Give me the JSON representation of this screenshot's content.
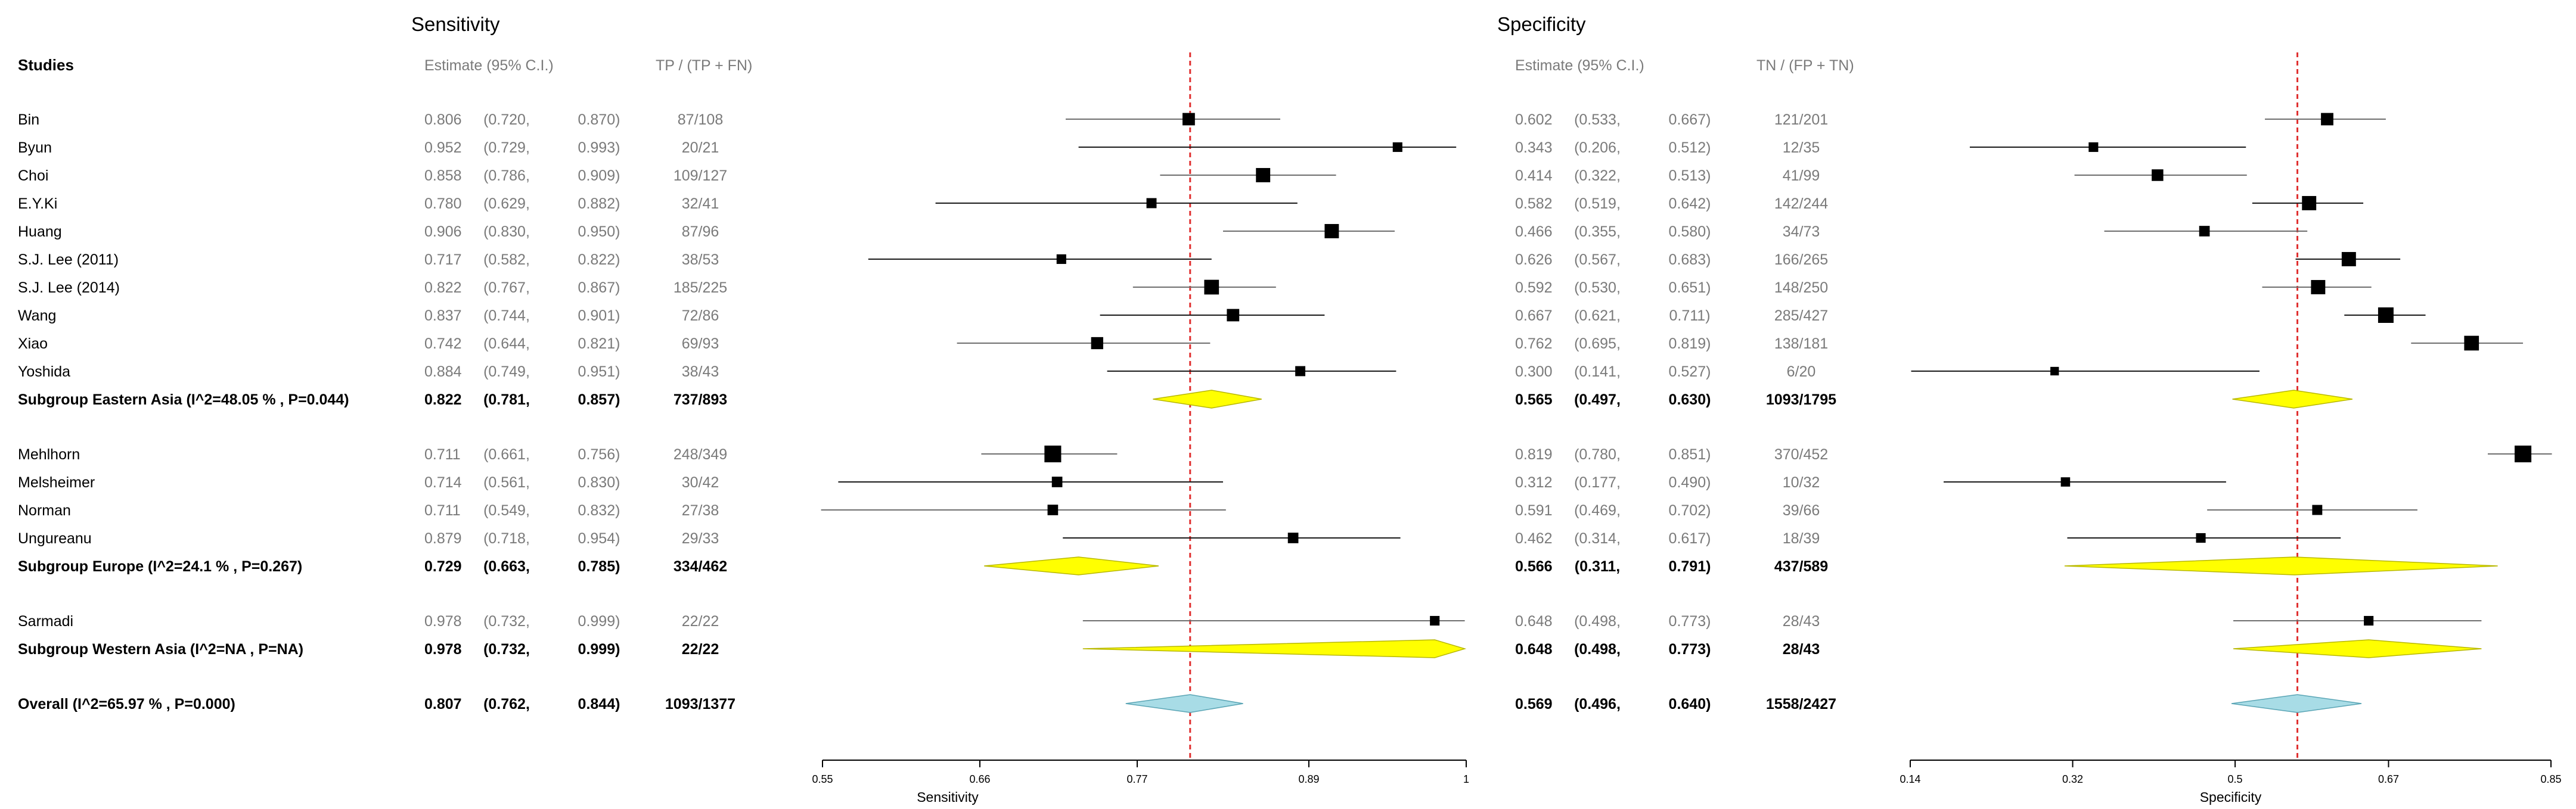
{
  "chart_data": {
    "type": "forest",
    "panels": [
      {
        "title": "Sensitivity",
        "xlabel": "Sensitivity",
        "est_header": "Estimate (95% C.I.)",
        "count_header": "TP / (TP + FN)",
        "xlim": [
          0.55,
          1
        ],
        "ticks": [
          0.55,
          0.66,
          0.77,
          0.89,
          1
        ],
        "tick_labels": [
          "0.55",
          "0.66",
          "0.77",
          "0.89",
          "1"
        ],
        "ref_line": 0.807
      },
      {
        "title": "Specificity",
        "xlabel": "Specificity",
        "est_header": "Estimate (95% C.I.)",
        "count_header": "TN / (FP + TN)",
        "xlim": [
          0.14,
          0.85
        ],
        "ticks": [
          0.14,
          0.32,
          0.5,
          0.67,
          0.85
        ],
        "tick_labels": [
          "0.14",
          "0.32",
          "0.5",
          "0.67",
          "0.85"
        ],
        "ref_line": 0.569
      }
    ],
    "studies_header": "Studies",
    "rows": [
      {
        "type": "study",
        "label": "Bin",
        "v": [
          [
            0.806,
            0.72,
            0.87,
            "0.806",
            "(0.720,",
            "0.870)",
            "87/108",
            0.8
          ],
          [
            0.602,
            0.533,
            0.667,
            "0.602",
            "(0.533,",
            "0.667)",
            "121/201",
            0.8
          ]
        ]
      },
      {
        "type": "study",
        "label": "Byun",
        "v": [
          [
            0.952,
            0.729,
            0.993,
            "0.952",
            "(0.729,",
            "0.993)",
            "20/21",
            0.62
          ],
          [
            0.343,
            0.206,
            0.512,
            "0.343",
            "(0.206,",
            "0.512)",
            "12/35",
            0.62
          ]
        ]
      },
      {
        "type": "study",
        "label": "Choi",
        "v": [
          [
            0.858,
            0.786,
            0.909,
            "0.858",
            "(0.786,",
            "0.909)",
            "109/127",
            0.92
          ],
          [
            0.414,
            0.322,
            0.513,
            "0.414",
            "(0.322,",
            "0.513)",
            "41/99",
            0.75
          ]
        ]
      },
      {
        "type": "study",
        "label": "E.Y.Ki",
        "v": [
          [
            0.78,
            0.629,
            0.882,
            "0.780",
            "(0.629,",
            "0.882)",
            "32/41",
            0.65
          ],
          [
            0.582,
            0.519,
            0.642,
            "0.582",
            "(0.519,",
            "0.642)",
            "142/244",
            0.92
          ]
        ]
      },
      {
        "type": "study",
        "label": "Huang",
        "v": [
          [
            0.906,
            0.83,
            0.95,
            "0.906",
            "(0.830,",
            "0.950)",
            "87/96",
            0.92
          ],
          [
            0.466,
            0.355,
            0.58,
            "0.466",
            "(0.355,",
            "0.580)",
            "34/73",
            0.68
          ]
        ]
      },
      {
        "type": "study",
        "label": "S.J. Lee (2011)",
        "v": [
          [
            0.717,
            0.582,
            0.822,
            "0.717",
            "(0.582,",
            "0.822)",
            "38/53",
            0.62
          ],
          [
            0.626,
            0.567,
            0.683,
            "0.626",
            "(0.567,",
            "0.683)",
            "166/265",
            0.92
          ]
        ]
      },
      {
        "type": "study",
        "label": "S.J. Lee (2014)",
        "v": [
          [
            0.822,
            0.767,
            0.867,
            "0.822",
            "(0.767,",
            "0.867)",
            "185/225",
            0.95
          ],
          [
            0.592,
            0.53,
            0.651,
            "0.592",
            "(0.530,",
            "0.651)",
            "148/250",
            0.92
          ]
        ]
      },
      {
        "type": "study",
        "label": "Wang",
        "v": [
          [
            0.837,
            0.744,
            0.901,
            "0.837",
            "(0.744,",
            "0.901)",
            "72/86",
            0.8
          ],
          [
            0.667,
            0.621,
            0.711,
            "0.667",
            "(0.621,",
            "0.711)",
            "285/427",
            1.0
          ]
        ]
      },
      {
        "type": "study",
        "label": "Xiao",
        "v": [
          [
            0.742,
            0.644,
            0.821,
            "0.742",
            "(0.644,",
            "0.821)",
            "69/93",
            0.78
          ],
          [
            0.762,
            0.695,
            0.819,
            "0.762",
            "(0.695,",
            "0.819)",
            "138/181",
            0.95
          ]
        ]
      },
      {
        "type": "study",
        "label": "Yoshida",
        "v": [
          [
            0.884,
            0.749,
            0.951,
            "0.884",
            "(0.749,",
            "0.951)",
            "38/43",
            0.65
          ],
          [
            0.3,
            0.141,
            0.527,
            "0.300",
            "(0.141,",
            "0.527)",
            "6/20",
            0.55
          ]
        ]
      },
      {
        "type": "subgroup",
        "label": "Subgroup Eastern Asia (I^2=48.05 % , P=0.044)",
        "v": [
          [
            0.822,
            0.781,
            0.857,
            "0.822",
            "(0.781,",
            "0.857)",
            "737/893"
          ],
          [
            0.565,
            0.497,
            0.63,
            "0.565",
            "(0.497,",
            "0.630)",
            "1093/1795"
          ]
        ]
      },
      {
        "type": "gap"
      },
      {
        "type": "study",
        "label": "Mehlhorn",
        "v": [
          [
            0.711,
            0.661,
            0.756,
            "0.711",
            "(0.661,",
            "0.756)",
            "248/349",
            1.08
          ],
          [
            0.819,
            0.78,
            0.851,
            "0.819",
            "(0.780,",
            "0.851)",
            "370/452",
            1.08
          ]
        ]
      },
      {
        "type": "study",
        "label": "Melsheimer",
        "v": [
          [
            0.714,
            0.561,
            0.83,
            "0.714",
            "(0.561,",
            "0.830)",
            "30/42",
            0.68
          ],
          [
            0.312,
            0.177,
            0.49,
            "0.312",
            "(0.177,",
            "0.490)",
            "10/32",
            0.6
          ]
        ]
      },
      {
        "type": "study",
        "label": "Norman",
        "v": [
          [
            0.711,
            0.549,
            0.832,
            "0.711",
            "(0.549,",
            "0.832)",
            "27/38",
            0.68
          ],
          [
            0.591,
            0.469,
            0.702,
            "0.591",
            "(0.469,",
            "0.702)",
            "39/66",
            0.65
          ]
        ]
      },
      {
        "type": "study",
        "label": "Ungureanu",
        "v": [
          [
            0.879,
            0.718,
            0.954,
            "0.879",
            "(0.718,",
            "0.954)",
            "29/33",
            0.68
          ],
          [
            0.462,
            0.314,
            0.617,
            "0.462",
            "(0.314,",
            "0.617)",
            "18/39",
            0.62
          ]
        ]
      },
      {
        "type": "subgroup",
        "label": "Subgroup Europe (I^2=24.1 % , P=0.267)",
        "v": [
          [
            0.729,
            0.663,
            0.785,
            "0.729",
            "(0.663,",
            "0.785)",
            "334/462"
          ],
          [
            0.566,
            0.311,
            0.791,
            "0.566",
            "(0.311,",
            "0.791)",
            "437/589"
          ]
        ]
      },
      {
        "type": "gap"
      },
      {
        "type": "study",
        "label": "Sarmadi",
        "v": [
          [
            0.978,
            0.732,
            0.999,
            "0.978",
            "(0.732,",
            "0.999)",
            "22/22",
            0.62
          ],
          [
            0.648,
            0.498,
            0.773,
            "0.648",
            "(0.498,",
            "0.773)",
            "28/43",
            0.62
          ]
        ]
      },
      {
        "type": "subgroup",
        "label": "Subgroup Western Asia (I^2=NA , P=NA)",
        "v": [
          [
            0.978,
            0.732,
            0.999,
            "0.978",
            "(0.732,",
            "0.999)",
            "22/22"
          ],
          [
            0.648,
            0.498,
            0.773,
            "0.648",
            "(0.498,",
            "0.773)",
            "28/43"
          ]
        ]
      },
      {
        "type": "gap"
      },
      {
        "type": "overall",
        "label": "Overall (I^2=65.97 % , P=0.000)",
        "v": [
          [
            0.807,
            0.762,
            0.844,
            "0.807",
            "(0.762,",
            "0.844)",
            "1093/1377"
          ],
          [
            0.569,
            0.496,
            0.64,
            "0.569",
            "(0.496,",
            "0.640)",
            "1558/2427"
          ]
        ]
      }
    ],
    "colors": {
      "text": "#000000",
      "mono_text": "#7a7a7a",
      "ci_line": "#6e6e6e",
      "ci_line_dark": "#1a1a1a",
      "subgroup_fill": "#ffff00",
      "subgroup_stroke": "#b8b800",
      "overall_fill": "#a8dce6",
      "overall_stroke": "#5aa5b5",
      "ref_line": "#e03030",
      "axis": "#000000"
    }
  }
}
